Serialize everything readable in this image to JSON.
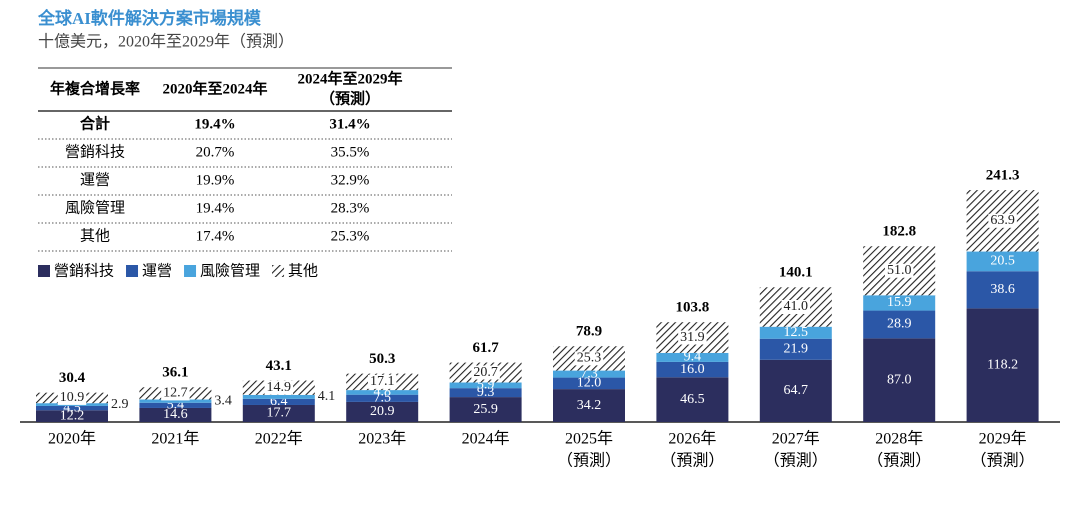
{
  "chart_data": {
    "type": "stacked_bar",
    "title": "全球AI軟件解決方案市場規模",
    "subtitle": "十億美元，2020年至2029年（預測）",
    "table": {
      "header": [
        "年複合增長率",
        "2020年至2024年",
        [
          "2024年至2029年",
          "（預測）"
        ]
      ],
      "rows": [
        [
          "合計",
          "19.4%",
          "31.4%"
        ],
        [
          "營銷科技",
          "20.7%",
          "35.5%"
        ],
        [
          "運營",
          "19.9%",
          "32.9%"
        ],
        [
          "風險管理",
          "19.4%",
          "28.3%"
        ],
        [
          "其他",
          "17.4%",
          "25.3%"
        ]
      ]
    },
    "categories": [
      [
        "2020年"
      ],
      [
        "2021年"
      ],
      [
        "2022年"
      ],
      [
        "2023年"
      ],
      [
        "2024年"
      ],
      [
        "2025年",
        "（預測）"
      ],
      [
        "2026年",
        "（預測）"
      ],
      [
        "2027年",
        "（預測）"
      ],
      [
        "2028年",
        "（預測）"
      ],
      [
        "2029年",
        "（預測）"
      ]
    ],
    "series": [
      {
        "name": "營銷科技",
        "color": "#2c2e5e",
        "values": [
          12.2,
          14.6,
          17.7,
          20.9,
          25.9,
          34.2,
          46.5,
          64.7,
          87.0,
          118.2
        ],
        "value_labels": [
          "12.2",
          "14.6",
          "17.7",
          "20.9",
          "25.9",
          "34.2",
          "46.5",
          "64.7",
          "87.0",
          "118.2"
        ]
      },
      {
        "name": "運營",
        "color": "#2b57a7",
        "values": [
          4.5,
          5.4,
          6.4,
          7.5,
          9.3,
          12.0,
          16.0,
          21.9,
          28.9,
          38.6
        ],
        "value_labels": [
          "4.5",
          "5.4",
          "6.4",
          "7.5",
          "9.3",
          "12.0",
          "16.0",
          "21.9",
          "28.9",
          "38.6"
        ]
      },
      {
        "name": "風險管理",
        "color": "#49a4dd",
        "values": [
          2.9,
          3.4,
          4.1,
          4.8,
          5.9,
          7.3,
          9.4,
          12.5,
          15.9,
          20.5
        ],
        "value_labels": [
          "2.9",
          "3.4",
          "4.1",
          "4.8",
          "5.9",
          "7.3",
          "9.4",
          "12.5",
          "15.9",
          "20.5"
        ]
      },
      {
        "name": "其他",
        "color": "hatch",
        "values": [
          10.9,
          12.7,
          14.9,
          17.1,
          20.7,
          25.3,
          31.9,
          41.0,
          51.0,
          63.9
        ],
        "value_labels": [
          "10.9",
          "12.7",
          "14.9",
          "17.1",
          "20.7",
          "25.3",
          "31.9",
          "41.0",
          "51.0",
          "63.9"
        ]
      }
    ],
    "totals": [
      30.4,
      36.1,
      43.1,
      50.3,
      61.7,
      78.9,
      103.8,
      140.1,
      182.8,
      241.3
    ]
  }
}
